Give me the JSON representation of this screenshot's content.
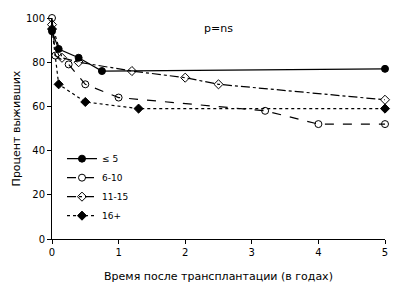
{
  "chart_data": {
    "type": "line",
    "x_label": "Время после трансплантации (в годах)",
    "y_label": "Процент выживших",
    "annotations": [
      "p=ns"
    ],
    "xlim": [
      0,
      5
    ],
    "xticks": [
      0,
      1,
      2,
      3,
      4,
      5
    ],
    "ylim": [
      0,
      100
    ],
    "yticks": [
      0,
      20,
      40,
      60,
      80,
      100
    ],
    "grid": false,
    "legend": "lower left",
    "series": [
      {
        "name": "≤ 5",
        "color": "#000000",
        "marker": "circle",
        "line_style": "solid",
        "x": [
          0,
          0.1,
          0.4,
          0.75,
          5
        ],
        "values": [
          94,
          86,
          82,
          76,
          77
        ]
      },
      {
        "name": "6-10",
        "color": "#000000",
        "marker": "circle-open",
        "line_style": "dash",
        "x": [
          0,
          0.05,
          0.25,
          0.5,
          1,
          3.2,
          4,
          5
        ],
        "values": [
          100,
          83,
          79,
          70,
          64,
          58,
          52,
          52
        ]
      },
      {
        "name": "11-15",
        "color": "#000000",
        "marker": "diamond-open",
        "line_style": "dashdot",
        "x": [
          0,
          0.15,
          0.4,
          1.2,
          2,
          2.5,
          5
        ],
        "values": [
          97,
          82,
          80,
          76,
          73,
          70,
          63
        ]
      },
      {
        "name": "16+",
        "color": "#000000",
        "marker": "diamond",
        "line_style": "dot",
        "x": [
          0,
          0.1,
          0.5,
          1.3,
          5
        ],
        "values": [
          95,
          70,
          62,
          59,
          59
        ]
      }
    ]
  }
}
